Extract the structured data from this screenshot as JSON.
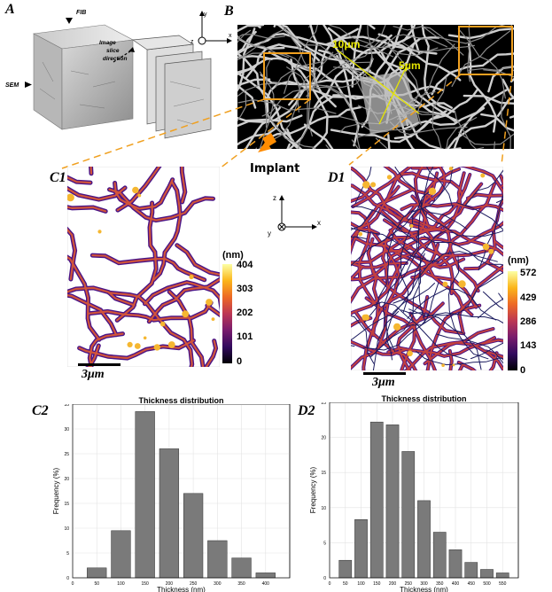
{
  "panels": {
    "A": {
      "label": "A",
      "fib": "FIB",
      "sem": "SEM",
      "direction": [
        "Image",
        "slice",
        "direction"
      ]
    },
    "B": {
      "label": "B",
      "dim1": "10μm",
      "dim2": "5μm",
      "implant": "Implant",
      "axes": {
        "y": "y",
        "z": "z",
        "x": "x"
      }
    },
    "C1": {
      "label": "C1",
      "scale": "3μm",
      "unit": "(nm)",
      "ticks": [
        "404",
        "303",
        "202",
        "101",
        "0"
      ]
    },
    "D1": {
      "label": "D1",
      "scale": "3μm",
      "unit": "(nm)",
      "ticks": [
        "572",
        "429",
        "286",
        "143",
        "0"
      ]
    },
    "center_axes": {
      "z": "z",
      "y": "y",
      "x": "x"
    },
    "C2": {
      "label": "C2"
    },
    "D2": {
      "label": "D2"
    }
  },
  "chart_data": [
    {
      "type": "bar",
      "title": "Thickness distribution",
      "xlabel": "Thickness (nm)",
      "ylabel": "Frequency (%)",
      "categories": [
        50,
        100,
        150,
        200,
        250,
        300,
        350,
        400
      ],
      "values": [
        2,
        9.5,
        33.5,
        26,
        17,
        7.5,
        4,
        1
      ],
      "xlim": [
        0,
        450
      ],
      "ylim": [
        0,
        35
      ],
      "xticks": [
        "0",
        "50",
        "100",
        "150",
        "200",
        "250",
        "300",
        "350",
        "400"
      ],
      "yticks": [
        "0",
        "5",
        "10",
        "15",
        "20",
        "25",
        "30",
        "35"
      ],
      "grid": true,
      "color": "#7a7a7a"
    },
    {
      "type": "bar",
      "title": "Thickness distribution",
      "xlabel": "Thickness (nm)",
      "ylabel": "Frequency (%)",
      "categories": [
        50,
        100,
        150,
        200,
        250,
        300,
        350,
        400,
        450,
        500,
        550
      ],
      "values": [
        2.5,
        8.3,
        22.2,
        21.8,
        18,
        11,
        6.5,
        4,
        2.2,
        1.2,
        0.7
      ],
      "xlim": [
        0,
        600
      ],
      "ylim": [
        0,
        25
      ],
      "xticks": [
        "0",
        "50",
        "100",
        "150",
        "200",
        "250",
        "300",
        "350",
        "400",
        "450",
        "500",
        "550"
      ],
      "yticks": [
        "0",
        "5",
        "10",
        "15",
        "20",
        "25"
      ],
      "grid": true,
      "color": "#7a7a7a"
    }
  ]
}
